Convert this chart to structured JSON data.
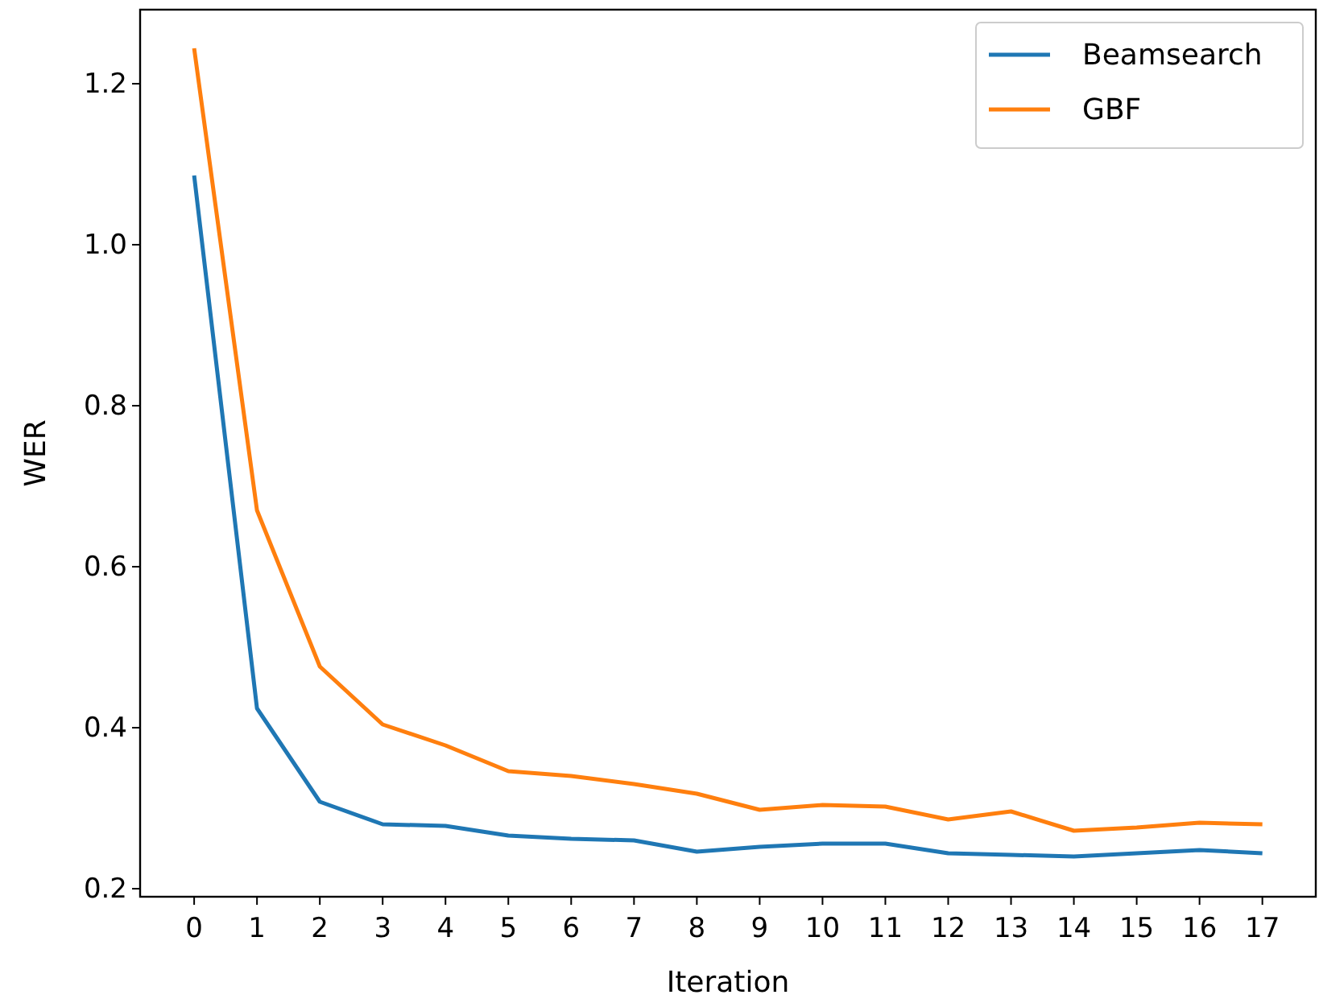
{
  "chart_data": {
    "type": "line",
    "xlabel": "Iteration",
    "ylabel": "WER",
    "x": [
      0,
      1,
      2,
      3,
      4,
      5,
      6,
      7,
      8,
      9,
      10,
      11,
      12,
      13,
      14,
      15,
      16,
      17
    ],
    "series": [
      {
        "name": "Beamsearch",
        "color": "#1f77b4",
        "values": [
          1.086,
          0.424,
          0.308,
          0.28,
          0.278,
          0.266,
          0.262,
          0.26,
          0.246,
          0.252,
          0.256,
          0.256,
          0.244,
          0.242,
          0.24,
          0.244,
          0.248,
          0.244
        ]
      },
      {
        "name": "GBF",
        "color": "#ff7f0e",
        "values": [
          1.244,
          0.67,
          0.476,
          0.404,
          0.378,
          0.346,
          0.34,
          0.33,
          0.318,
          0.298,
          0.304,
          0.302,
          0.286,
          0.296,
          0.272,
          0.276,
          0.282,
          0.28
        ]
      }
    ],
    "xlim": [
      -0.86,
      17.85
    ],
    "ylim": [
      0.19,
      1.292
    ],
    "xticks": [
      0,
      1,
      2,
      3,
      4,
      5,
      6,
      7,
      8,
      9,
      10,
      11,
      12,
      13,
      14,
      15,
      16,
      17
    ],
    "yticks": [
      {
        "value": 0.2,
        "label": "0.2"
      },
      {
        "value": 0.4,
        "label": "0.4"
      },
      {
        "value": 0.6,
        "label": "0.6"
      },
      {
        "value": 0.8,
        "label": "0.8"
      },
      {
        "value": 1.0,
        "label": "1.0"
      },
      {
        "value": 1.2,
        "label": "1.2"
      }
    ],
    "legend": "top right",
    "grid": false,
    "marker": "none",
    "line_style": "solid"
  }
}
